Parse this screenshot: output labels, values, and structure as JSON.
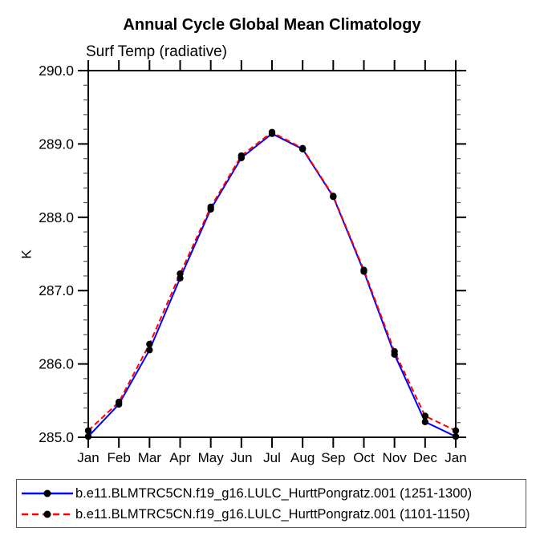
{
  "window": {
    "background_color": "#ffffff",
    "text_color": "#000000"
  },
  "chart_data": {
    "type": "line",
    "title": "Annual Cycle Global Mean Climatology",
    "left_string": "Surf Temp (radiative)",
    "ylabel": "K",
    "xlabel": "",
    "categories": [
      "Jan",
      "Feb",
      "Mar",
      "Apr",
      "May",
      "Jun",
      "Jul",
      "Aug",
      "Sep",
      "Oct",
      "Nov",
      "Dec",
      "Jan"
    ],
    "ylim": [
      285.0,
      290.0
    ],
    "ytick_values": [
      285.0,
      286.0,
      287.0,
      288.0,
      289.0,
      290.0
    ],
    "ytick_labels": [
      "285.0",
      "286.0",
      "287.0",
      "288.0",
      "289.0",
      "290.0"
    ],
    "ytick_minor_step": 0.2,
    "grid": false,
    "frame": "box-with-outward-ticks",
    "legend_position": "bottom-box",
    "axis_color": "#000000",
    "minor_tick_color": "#555555",
    "series": [
      {
        "name": "b.e11.BLMTRC5CN.f19_g16.LULC_HurttPongratz.001 (1251-1300)",
        "color": "#0000ff",
        "line_style": "solid",
        "marker": "filled-circle",
        "marker_color": "#000000",
        "values": [
          285.01,
          285.45,
          286.19,
          287.17,
          288.11,
          288.81,
          289.14,
          288.93,
          288.28,
          287.26,
          286.13,
          285.21,
          285.01
        ]
      },
      {
        "name": "b.e11.BLMTRC5CN.f19_g16.LULC_HurttPongratz.001 (1101-1150)",
        "color": "#ff0000",
        "line_style": "dashed",
        "marker": "filled-circle",
        "marker_color": "#000000",
        "values": [
          285.09,
          285.48,
          286.27,
          287.23,
          288.14,
          288.84,
          289.16,
          288.94,
          288.29,
          287.28,
          286.17,
          285.29,
          285.09
        ]
      }
    ]
  }
}
